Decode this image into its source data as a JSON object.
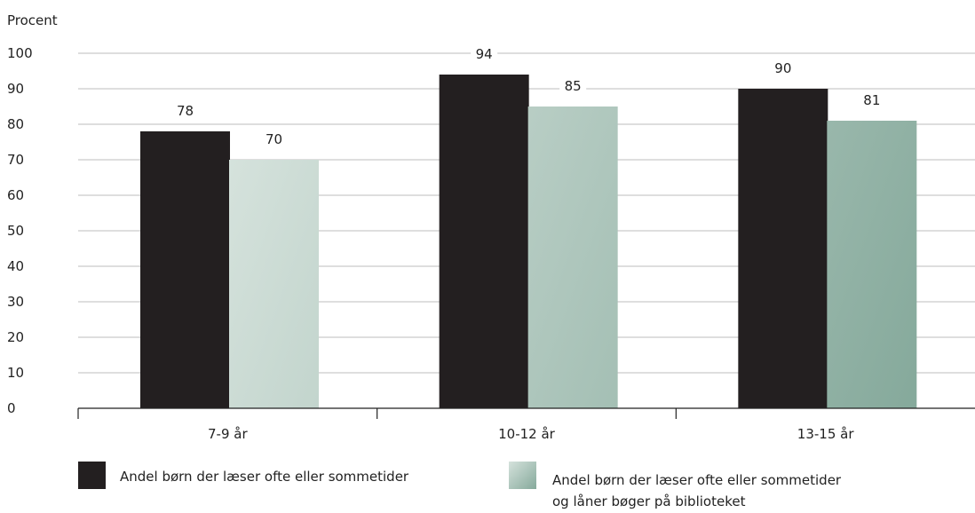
{
  "chart_data": {
    "type": "bar",
    "ylabel": "Procent",
    "xlabel": "",
    "ylim": [
      0,
      100
    ],
    "yticks": [
      0,
      10,
      20,
      30,
      40,
      50,
      60,
      70,
      80,
      90,
      100
    ],
    "grid": true,
    "legend_position": "bottom",
    "categories": [
      "7-9 år",
      "10-12 år",
      "13-15 år"
    ],
    "series": [
      {
        "name": "Andel børn der læser ofte eller sommetider",
        "color": "#231f20",
        "values": [
          78,
          94,
          90
        ]
      },
      {
        "name": "Andel børn der læser ofte eller sommetider og låner bøger på biblioteket",
        "name_lines": [
          "Andel børn der læser ofte eller sommetider",
          "og låner bøger på biblioteket"
        ],
        "color": "#8aaa9e",
        "gradient_from": "#d5e2dc",
        "gradient_to": "#85a99b",
        "values": [
          70,
          85,
          81
        ]
      }
    ]
  }
}
